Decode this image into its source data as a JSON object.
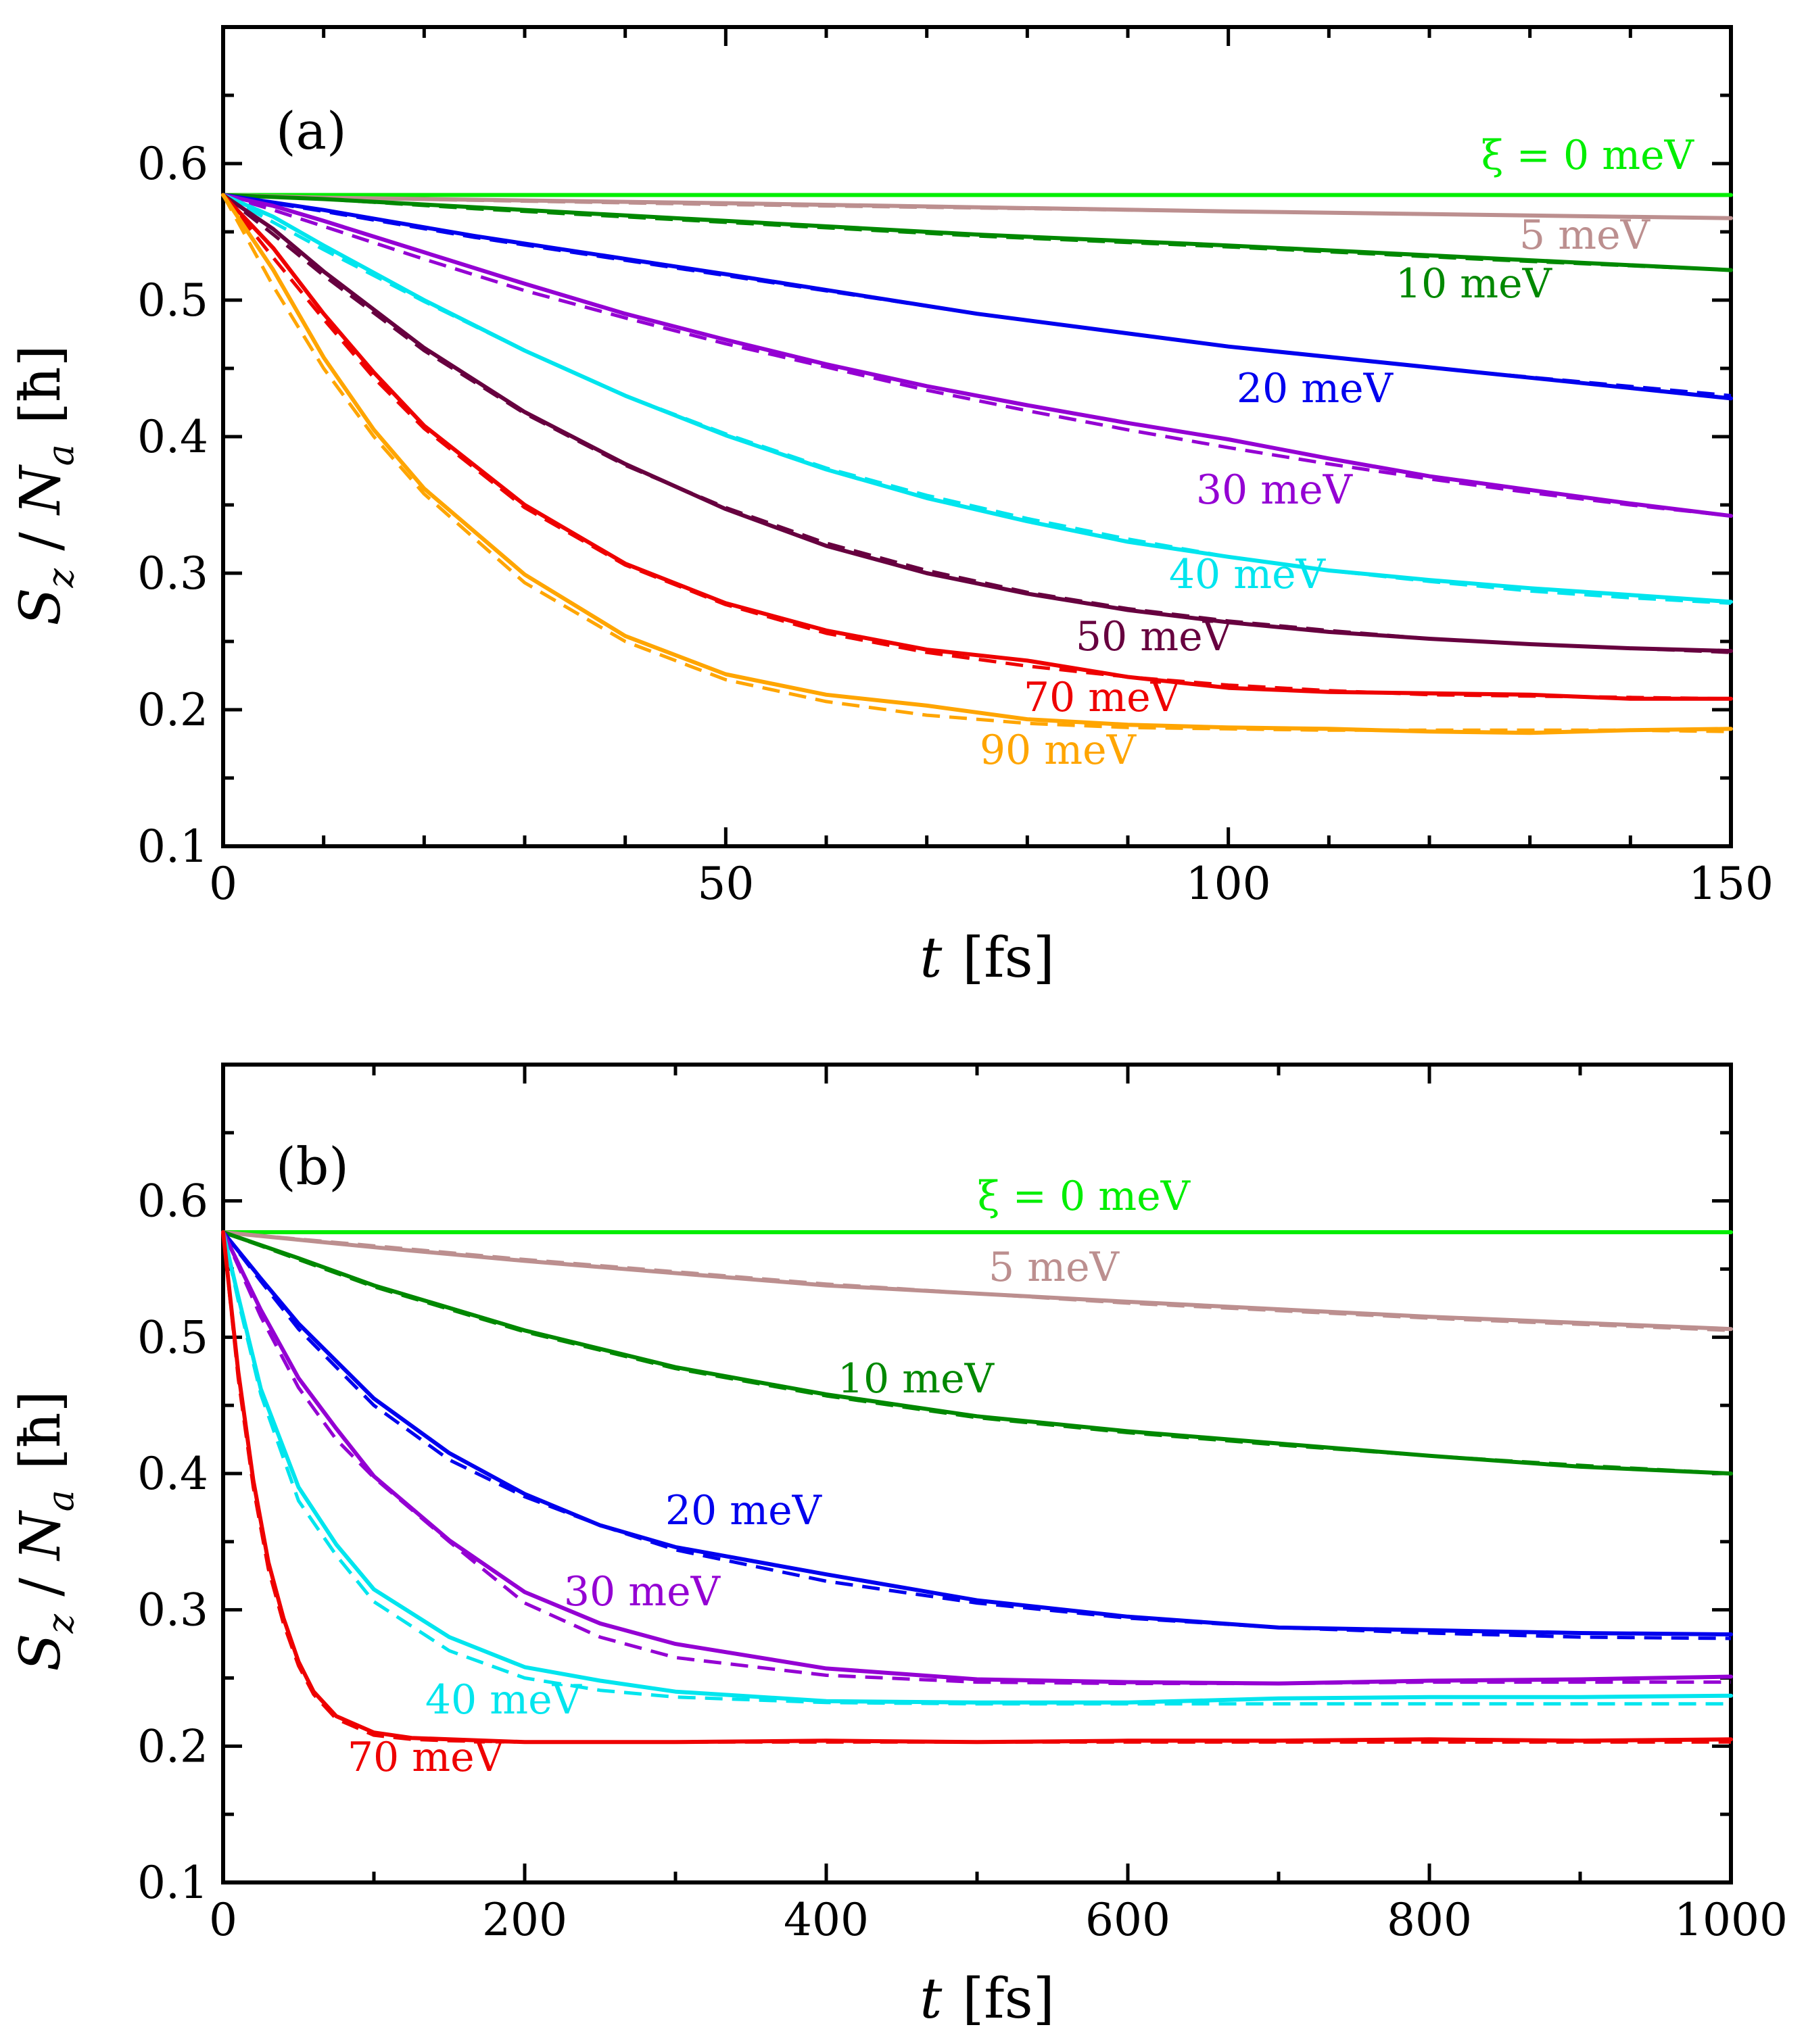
{
  "chart_data": [
    {
      "type": "line",
      "panel_label": "(a)",
      "xlabel": {
        "var": "t",
        "unit": "[fs]"
      },
      "ylabel": {
        "S": "S",
        "z": "z",
        "sep": " / ",
        "N": "N",
        "a": "a",
        "unit": "[ħ]"
      },
      "xlim": [
        0,
        150
      ],
      "ylim": [
        0.1,
        0.7
      ],
      "xticks": [
        "0",
        "50",
        "100",
        "150"
      ],
      "yticks": [
        "0.1",
        "0.2",
        "0.3",
        "0.4",
        "0.5",
        "0.6"
      ],
      "series": [
        {
          "name": "ξ = 0 meV",
          "color": "#00ee00",
          "x": [
            0,
            150
          ],
          "values": [
            0.577,
            0.577
          ],
          "fit": [
            0.577,
            0.577
          ]
        },
        {
          "name": "5 meV",
          "color": "#bc8f8f",
          "x": [
            0,
            10,
            50,
            100,
            150
          ],
          "values": [
            0.577,
            0.575,
            0.571,
            0.565,
            0.56
          ],
          "fit": [
            0.577,
            0.575,
            0.57,
            0.565,
            0.56
          ]
        },
        {
          "name": "10 meV",
          "color": "#008800",
          "x": [
            0,
            10,
            25,
            50,
            75,
            100,
            125,
            150
          ],
          "values": [
            0.577,
            0.574,
            0.568,
            0.558,
            0.548,
            0.54,
            0.531,
            0.522
          ],
          "fit": [
            0.577,
            0.574,
            0.567,
            0.557,
            0.547,
            0.539,
            0.53,
            0.522
          ]
        },
        {
          "name": "20 meV",
          "color": "#0000ee",
          "x": [
            0,
            10,
            25,
            50,
            75,
            100,
            125,
            150
          ],
          "values": [
            0.577,
            0.566,
            0.547,
            0.519,
            0.49,
            0.466,
            0.447,
            0.428
          ],
          "fit": [
            0.577,
            0.565,
            0.546,
            0.518,
            0.49,
            0.466,
            0.447,
            0.43
          ]
        },
        {
          "name": "30 meV",
          "color": "#9400d3",
          "x": [
            0,
            5,
            10,
            20,
            30,
            40,
            50,
            60,
            70,
            80,
            90,
            100,
            110,
            120,
            130,
            140,
            150
          ],
          "values": [
            0.577,
            0.569,
            0.558,
            0.535,
            0.512,
            0.49,
            0.471,
            0.453,
            0.437,
            0.423,
            0.41,
            0.398,
            0.384,
            0.371,
            0.361,
            0.351,
            0.342
          ],
          "fit": [
            0.577,
            0.566,
            0.554,
            0.53,
            0.507,
            0.487,
            0.468,
            0.451,
            0.434,
            0.419,
            0.405,
            0.392,
            0.38,
            0.369,
            0.359,
            0.35,
            0.342
          ]
        },
        {
          "name": "40 meV",
          "color": "#00e5ee",
          "x": [
            0,
            5,
            10,
            20,
            30,
            40,
            50,
            60,
            70,
            80,
            90,
            100,
            110,
            120,
            130,
            140,
            150
          ],
          "values": [
            0.577,
            0.561,
            0.54,
            0.5,
            0.463,
            0.43,
            0.401,
            0.376,
            0.355,
            0.338,
            0.323,
            0.312,
            0.302,
            0.295,
            0.289,
            0.284,
            0.279
          ],
          "fit": [
            0.577,
            0.557,
            0.537,
            0.499,
            0.463,
            0.43,
            0.402,
            0.377,
            0.357,
            0.34,
            0.325,
            0.312,
            0.302,
            0.294,
            0.287,
            0.282,
            0.278
          ]
        },
        {
          "name": "50 meV",
          "color": "#67003f",
          "x": [
            0,
            5,
            10,
            20,
            30,
            40,
            50,
            60,
            70,
            80,
            90,
            100,
            110,
            120,
            130,
            140,
            150
          ],
          "values": [
            0.577,
            0.552,
            0.521,
            0.465,
            0.418,
            0.38,
            0.347,
            0.32,
            0.3,
            0.285,
            0.273,
            0.264,
            0.257,
            0.252,
            0.248,
            0.245,
            0.243
          ],
          "fit": [
            0.577,
            0.548,
            0.518,
            0.463,
            0.417,
            0.379,
            0.348,
            0.322,
            0.302,
            0.286,
            0.274,
            0.265,
            0.258,
            0.252,
            0.248,
            0.245,
            0.242
          ]
        },
        {
          "name": "70 meV",
          "color": "#ee0000",
          "x": [
            0,
            5,
            10,
            15,
            20,
            30,
            40,
            50,
            60,
            70,
            80,
            90,
            100,
            110,
            120,
            130,
            140,
            150
          ],
          "values": [
            0.577,
            0.538,
            0.49,
            0.447,
            0.408,
            0.35,
            0.307,
            0.278,
            0.258,
            0.244,
            0.236,
            0.224,
            0.216,
            0.213,
            0.212,
            0.211,
            0.208,
            0.208
          ],
          "fit": [
            0.577,
            0.531,
            0.486,
            0.443,
            0.406,
            0.348,
            0.306,
            0.277,
            0.256,
            0.242,
            0.232,
            0.224,
            0.218,
            0.214,
            0.211,
            0.21,
            0.209,
            0.208
          ]
        },
        {
          "name": "90 meV",
          "color": "#ffa500",
          "x": [
            0,
            5,
            10,
            15,
            20,
            30,
            40,
            50,
            60,
            70,
            80,
            90,
            100,
            110,
            120,
            130,
            140,
            150
          ],
          "values": [
            0.577,
            0.522,
            0.458,
            0.405,
            0.362,
            0.299,
            0.254,
            0.226,
            0.211,
            0.203,
            0.193,
            0.189,
            0.187,
            0.186,
            0.184,
            0.183,
            0.185,
            0.186
          ],
          "fit": [
            0.577,
            0.51,
            0.45,
            0.4,
            0.358,
            0.293,
            0.25,
            0.222,
            0.206,
            0.196,
            0.19,
            0.187,
            0.186,
            0.185,
            0.185,
            0.185,
            0.185,
            0.184
          ]
        }
      ]
    },
    {
      "type": "line",
      "panel_label": "(b)",
      "xlabel": {
        "var": "t",
        "unit": "[fs]"
      },
      "ylabel": {
        "S": "S",
        "z": "z",
        "sep": " / ",
        "N": "N",
        "a": "a",
        "unit": "[ħ]"
      },
      "xlim": [
        0,
        1000
      ],
      "ylim": [
        0.1,
        0.7
      ],
      "xticks": [
        "0",
        "200",
        "400",
        "600",
        "800",
        "1000"
      ],
      "yticks": [
        "0.1",
        "0.2",
        "0.3",
        "0.4",
        "0.5",
        "0.6"
      ],
      "series": [
        {
          "name": "ξ = 0 meV",
          "color": "#00ee00",
          "x": [
            0,
            1000
          ],
          "values": [
            0.577,
            0.577
          ],
          "fit": [
            0.577,
            0.577
          ]
        },
        {
          "name": "5 meV",
          "color": "#bc8f8f",
          "x": [
            0,
            100,
            200,
            400,
            600,
            800,
            1000
          ],
          "values": [
            0.577,
            0.566,
            0.556,
            0.538,
            0.526,
            0.515,
            0.506
          ],
          "fit": [
            0.577,
            0.567,
            0.557,
            0.539,
            0.525,
            0.514,
            0.505
          ]
        },
        {
          "name": "10 meV",
          "color": "#008800",
          "x": [
            0,
            50,
            100,
            200,
            300,
            400,
            500,
            600,
            700,
            800,
            900,
            1000
          ],
          "values": [
            0.577,
            0.558,
            0.538,
            0.505,
            0.478,
            0.458,
            0.442,
            0.431,
            0.422,
            0.413,
            0.405,
            0.4
          ],
          "fit": [
            0.577,
            0.557,
            0.537,
            0.504,
            0.477,
            0.457,
            0.441,
            0.43,
            0.421,
            0.413,
            0.406,
            0.4
          ]
        },
        {
          "name": "20 meV",
          "color": "#0000ee",
          "x": [
            0,
            25,
            50,
            100,
            150,
            200,
            250,
            300,
            400,
            500,
            600,
            700,
            800,
            900,
            1000
          ],
          "values": [
            0.577,
            0.543,
            0.51,
            0.455,
            0.415,
            0.385,
            0.362,
            0.346,
            0.326,
            0.307,
            0.295,
            0.287,
            0.285,
            0.283,
            0.282
          ],
          "fit": [
            0.577,
            0.541,
            0.506,
            0.45,
            0.41,
            0.383,
            0.362,
            0.344,
            0.321,
            0.305,
            0.294,
            0.287,
            0.283,
            0.28,
            0.279
          ]
        },
        {
          "name": "30 meV",
          "color": "#9400d3",
          "x": [
            0,
            25,
            50,
            75,
            100,
            150,
            200,
            250,
            300,
            400,
            500,
            600,
            700,
            800,
            900,
            1000
          ],
          "values": [
            0.577,
            0.52,
            0.47,
            0.433,
            0.398,
            0.351,
            0.313,
            0.29,
            0.275,
            0.257,
            0.249,
            0.247,
            0.246,
            0.248,
            0.249,
            0.251
          ],
          "fit": [
            0.577,
            0.515,
            0.463,
            0.425,
            0.397,
            0.35,
            0.305,
            0.28,
            0.265,
            0.252,
            0.247,
            0.246,
            0.246,
            0.247,
            0.247,
            0.247
          ]
        },
        {
          "name": "40 meV",
          "color": "#00e5ee",
          "x": [
            0,
            10,
            25,
            50,
            75,
            100,
            150,
            200,
            250,
            300,
            400,
            500,
            600,
            700,
            800,
            900,
            1000
          ],
          "values": [
            0.577,
            0.53,
            0.462,
            0.39,
            0.348,
            0.315,
            0.28,
            0.258,
            0.248,
            0.24,
            0.233,
            0.232,
            0.232,
            0.235,
            0.236,
            0.236,
            0.237
          ],
          "fit": [
            0.577,
            0.527,
            0.458,
            0.38,
            0.34,
            0.306,
            0.27,
            0.25,
            0.241,
            0.236,
            0.232,
            0.231,
            0.231,
            0.231,
            0.231,
            0.231,
            0.231
          ]
        },
        {
          "name": "70 meV",
          "color": "#ee0000",
          "x": [
            0,
            10,
            20,
            30,
            40,
            50,
            60,
            75,
            100,
            125,
            150,
            200,
            300,
            400,
            500,
            600,
            700,
            800,
            900,
            1000
          ],
          "values": [
            0.577,
            0.475,
            0.395,
            0.335,
            0.294,
            0.262,
            0.24,
            0.222,
            0.21,
            0.206,
            0.205,
            0.203,
            0.203,
            0.204,
            0.203,
            0.204,
            0.204,
            0.205,
            0.204,
            0.205
          ],
          "fit": [
            0.577,
            0.47,
            0.39,
            0.33,
            0.29,
            0.259,
            0.238,
            0.22,
            0.208,
            0.205,
            0.204,
            0.203,
            0.203,
            0.203,
            0.203,
            0.203,
            0.203,
            0.203,
            0.203,
            0.203
          ]
        }
      ]
    }
  ]
}
